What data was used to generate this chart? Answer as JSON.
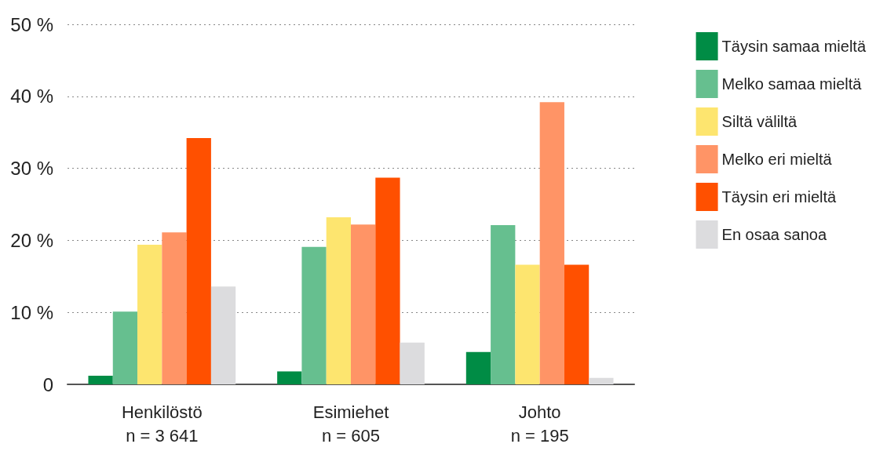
{
  "chart_data": {
    "type": "bar",
    "categories": [
      "Henkilöstö\nn = 3 641",
      "Esimiehet\nn = 605",
      "Johto\nn = 195"
    ],
    "series": [
      {
        "name": "Täysin samaa mieltä",
        "color": "#008c45",
        "values": [
          1.2,
          1.8,
          4.5
        ]
      },
      {
        "name": "Melko samaa mieltä",
        "color": "#66bf8f",
        "values": [
          10.1,
          19.1,
          22.1
        ]
      },
      {
        "name": "Siltä väliltä",
        "color": "#fde56f",
        "values": [
          19.4,
          23.2,
          16.6
        ]
      },
      {
        "name": "Melko eri mieltä",
        "color": "#ff9466",
        "values": [
          21.1,
          22.2,
          39.2
        ]
      },
      {
        "name": "Täysin eri mieltä",
        "color": "#ff5000",
        "values": [
          34.2,
          28.7,
          16.6
        ]
      },
      {
        "name": "En osaa sanoa",
        "color": "#dcdcde",
        "values": [
          13.6,
          5.8,
          0.9
        ]
      }
    ],
    "ylim": [
      0,
      50
    ],
    "yticks": [
      0,
      {
        "value": 10,
        "label": "10 %"
      },
      {
        "value": 20,
        "label": "20 %"
      },
      {
        "value": 30,
        "label": "30 %"
      },
      {
        "value": 40,
        "label": "40 %"
      },
      {
        "value": 50,
        "label": "50 %"
      }
    ],
    "grid": "y",
    "legend": "right"
  }
}
